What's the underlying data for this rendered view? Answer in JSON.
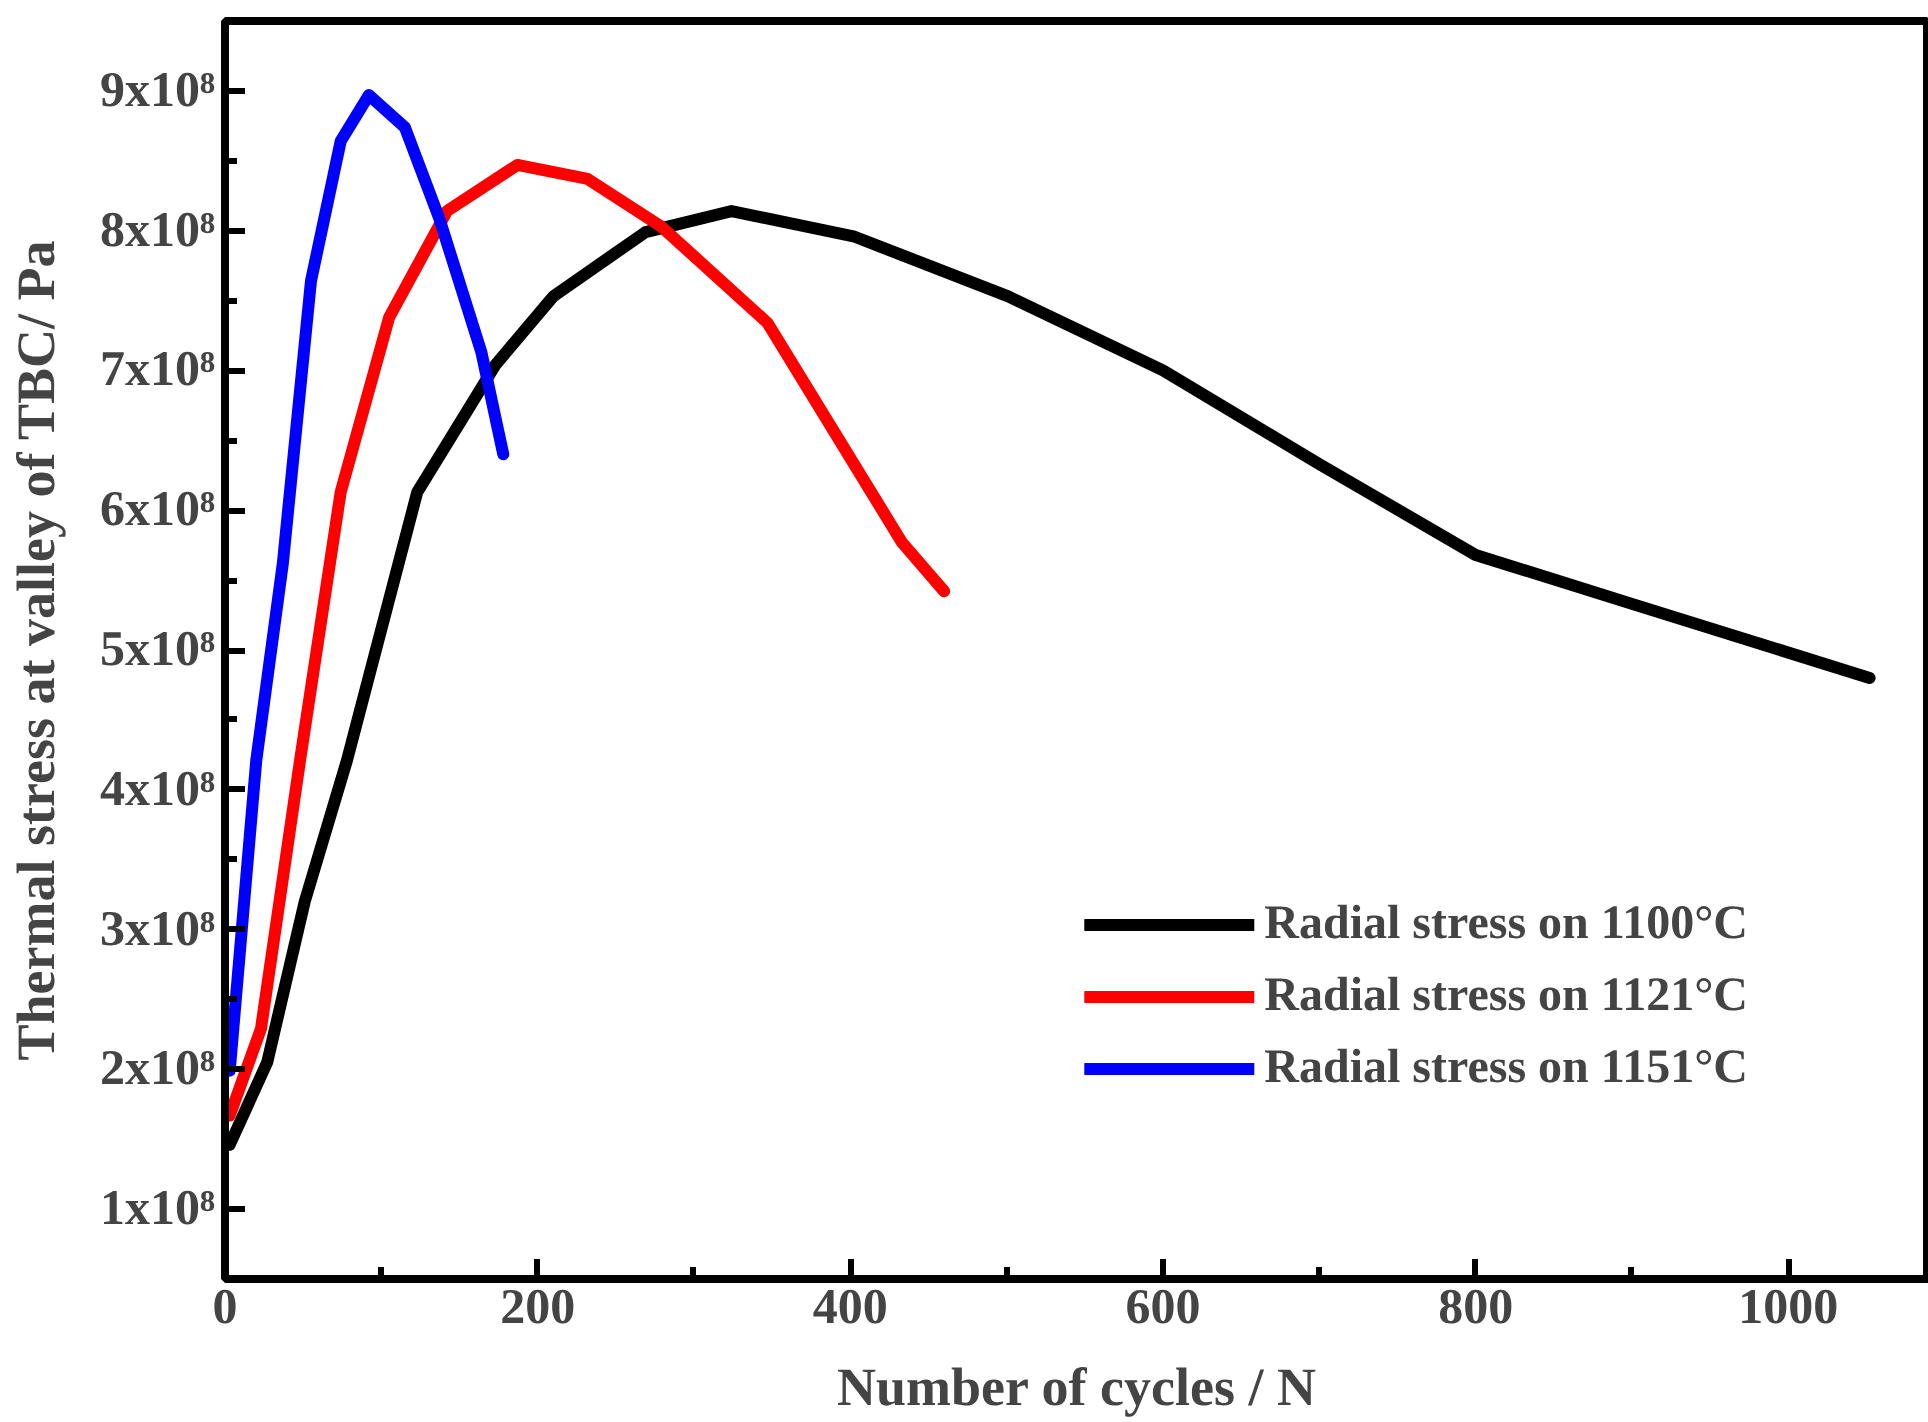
{
  "chart_data": {
    "type": "line",
    "xlabel": "Number of cycles / N",
    "ylabel": "Thermal stress at valley of TBC/ Pa",
    "xlim": [
      0,
      1090
    ],
    "ylim": [
      50000000,
      950000000
    ],
    "xticks": [
      0,
      200,
      400,
      600,
      800,
      1000
    ],
    "yticks": [
      {
        "value": 100000000,
        "label": "1x10⁸"
      },
      {
        "value": 200000000,
        "label": "2x10⁸"
      },
      {
        "value": 300000000,
        "label": "3x10⁸"
      },
      {
        "value": 400000000,
        "label": "4x10⁸"
      },
      {
        "value": 500000000,
        "label": "5x10⁸"
      },
      {
        "value": 600000000,
        "label": "6x10⁸"
      },
      {
        "value": 700000000,
        "label": "7x10⁸"
      },
      {
        "value": 800000000,
        "label": "8x10⁸"
      },
      {
        "value": 900000000,
        "label": "9x10⁸"
      }
    ],
    "grid": false,
    "legend": "bottom right",
    "marker": "none",
    "line_style": "solid",
    "series": [
      {
        "name": "Radial stress on 1100°C",
        "color": "#000000",
        "x": [
          3,
          27,
          51,
          78,
          123,
          173,
          210,
          269,
          324,
          402,
          501,
          600,
          700,
          800,
          900,
          1052
        ],
        "values": [
          146000000,
          205000000,
          320000000,
          421000000,
          613000000,
          704000000,
          753000000,
          799000000,
          814000000,
          796000000,
          753000000,
          700000000,
          633000000,
          568000000,
          533000000,
          480000000
        ]
      },
      {
        "name": "Radial stress on 1121°C",
        "color": "#ff0000",
        "x": [
          3,
          23,
          48,
          74,
          105,
          142,
          187,
          232,
          279,
          347,
          433,
          460
        ],
        "values": [
          167000000,
          229000000,
          421000000,
          613000000,
          738000000,
          814000000,
          847000000,
          837000000,
          803000000,
          734000000,
          577000000,
          542000000
        ]
      },
      {
        "name": "Radial stress on 1151°C",
        "color": "#0000ff",
        "x": [
          3,
          20,
          37,
          55,
          74,
          92,
          115,
          137,
          164,
          178
        ],
        "values": [
          199000000,
          421000000,
          562000000,
          764000000,
          864000000,
          897000000,
          874000000,
          809000000,
          713000000,
          640000000
        ]
      }
    ]
  }
}
